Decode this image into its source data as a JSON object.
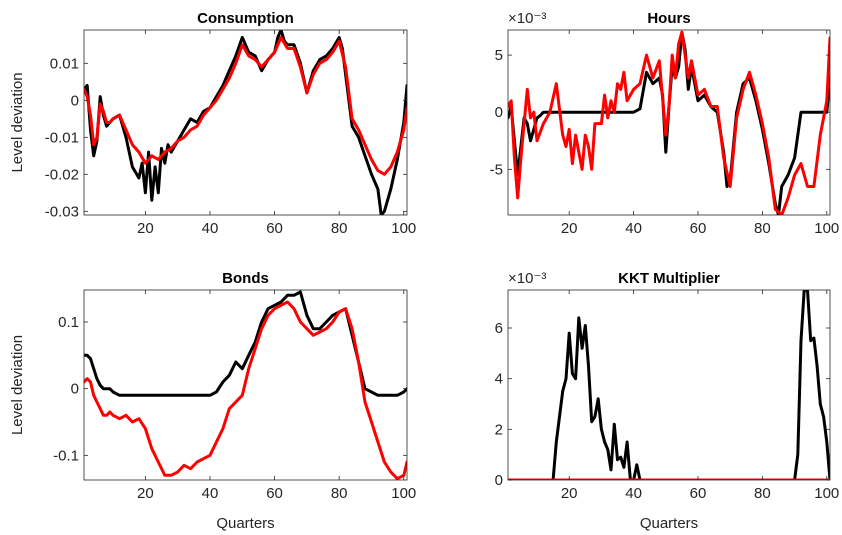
{
  "chart_data": [
    {
      "type": "line",
      "title": "Consumption",
      "xlabel": "",
      "ylabel": "Level deviation",
      "xlim": [
        1,
        101
      ],
      "ylim": [
        -0.031,
        0.019
      ],
      "xticks": [
        20,
        40,
        60,
        80,
        100
      ],
      "yticks": [
        -0.03,
        -0.02,
        -0.01,
        0,
        0.01
      ],
      "ytick_labels": [
        "-0.03",
        "-0.02",
        "-0.01",
        "0",
        "0.01"
      ],
      "exponent_label": "",
      "grid": false,
      "series": [
        {
          "color": "#000000",
          "x": [
            1,
            2,
            3,
            4,
            5,
            6,
            7,
            8,
            9,
            10,
            12,
            14,
            16,
            18,
            19,
            20,
            21,
            22,
            23,
            24,
            25,
            26,
            27,
            28,
            30,
            32,
            34,
            36,
            38,
            40,
            42,
            44,
            46,
            48,
            50,
            52,
            54,
            56,
            58,
            60,
            61,
            62,
            63,
            64,
            66,
            68,
            70,
            72,
            74,
            76,
            78,
            80,
            81,
            82,
            84,
            86,
            88,
            90,
            92,
            93,
            94,
            95,
            96,
            98,
            100,
            101
          ],
          "y": [
            0.003,
            0.004,
            -0.008,
            -0.015,
            -0.011,
            0.001,
            -0.004,
            -0.007,
            -0.006,
            -0.005,
            -0.004,
            -0.01,
            -0.018,
            -0.021,
            -0.017,
            -0.025,
            -0.014,
            -0.027,
            -0.018,
            -0.025,
            -0.013,
            -0.017,
            -0.012,
            -0.014,
            -0.011,
            -0.008,
            -0.005,
            -0.006,
            -0.003,
            -0.002,
            0.001,
            0.004,
            0.008,
            0.012,
            0.017,
            0.013,
            0.012,
            0.008,
            0.011,
            0.013,
            0.017,
            0.019,
            0.016,
            0.015,
            0.015,
            0.01,
            0.002,
            0.008,
            0.011,
            0.012,
            0.014,
            0.017,
            0.014,
            0.007,
            -0.007,
            -0.01,
            -0.015,
            -0.02,
            -0.024,
            -0.031,
            -0.03,
            -0.027,
            -0.024,
            -0.016,
            -0.006,
            0.004
          ]
        },
        {
          "color": "#ff0000",
          "x": [
            1,
            2,
            3,
            4,
            5,
            6,
            7,
            8,
            9,
            10,
            12,
            14,
            16,
            18,
            20,
            22,
            24,
            26,
            28,
            30,
            32,
            34,
            36,
            38,
            40,
            42,
            44,
            46,
            48,
            50,
            52,
            54,
            56,
            58,
            60,
            62,
            64,
            66,
            68,
            70,
            72,
            74,
            76,
            78,
            80,
            82,
            84,
            86,
            88,
            90,
            92,
            94,
            96,
            98,
            100,
            101
          ],
          "y": [
            0.003,
            0.001,
            -0.004,
            -0.012,
            -0.01,
            -0.001,
            -0.003,
            -0.006,
            -0.006,
            -0.005,
            -0.004,
            -0.008,
            -0.012,
            -0.014,
            -0.017,
            -0.015,
            -0.016,
            -0.014,
            -0.013,
            -0.011,
            -0.01,
            -0.008,
            -0.007,
            -0.004,
            -0.002,
            0.0,
            0.003,
            0.006,
            0.01,
            0.015,
            0.012,
            0.011,
            0.009,
            0.011,
            0.013,
            0.017,
            0.014,
            0.014,
            0.009,
            0.002,
            0.007,
            0.01,
            0.011,
            0.013,
            0.016,
            0.009,
            -0.005,
            -0.008,
            -0.012,
            -0.016,
            -0.019,
            -0.02,
            -0.018,
            -0.014,
            -0.008,
            -0.002
          ]
        }
      ]
    },
    {
      "type": "line",
      "title": "Hours",
      "xlabel": "",
      "ylabel": "",
      "xlim": [
        1,
        101
      ],
      "ylim": [
        -9,
        7.2
      ],
      "xticks": [
        20,
        40,
        60,
        80,
        100
      ],
      "yticks": [
        -5,
        0,
        5
      ],
      "ytick_labels": [
        "-5",
        "0",
        "5"
      ],
      "exponent_label": "×10⁻³",
      "grid": false,
      "series": [
        {
          "color": "#000000",
          "x": [
            1,
            2,
            3,
            4,
            5,
            6,
            7,
            8,
            9,
            10,
            11,
            12,
            13,
            14,
            16,
            20,
            30,
            40,
            42,
            44,
            46,
            48,
            49,
            50,
            51,
            52,
            53,
            54,
            55,
            56,
            57,
            58,
            60,
            62,
            64,
            66,
            68,
            69,
            70,
            72,
            74,
            76,
            78,
            80,
            82,
            84,
            85,
            86,
            88,
            90,
            92,
            94,
            96,
            98,
            100,
            101
          ],
          "y": [
            -0.5,
            0.5,
            -2.5,
            -5.5,
            -3.0,
            -0.5,
            -1.0,
            -2.5,
            -1.5,
            -0.5,
            -0.3,
            0,
            0,
            0,
            0,
            0,
            0,
            0,
            0.3,
            3.5,
            2.5,
            3.0,
            1.5,
            -3.5,
            0.5,
            4.0,
            3.0,
            4.0,
            7.0,
            5.5,
            2.0,
            4.0,
            1.0,
            1.5,
            0.5,
            0.0,
            -3.5,
            -6.5,
            -6.0,
            0.0,
            2.5,
            3.0,
            1.0,
            -1.5,
            -4.5,
            -8.0,
            -9.0,
            -6.5,
            -5.5,
            -4.0,
            0.0,
            0.0,
            0.0,
            0.0,
            0.0,
            3.0
          ]
        },
        {
          "color": "#ff0000",
          "x": [
            1,
            2,
            3,
            4,
            5,
            6,
            7,
            8,
            9,
            10,
            12,
            14,
            16,
            18,
            19,
            20,
            21,
            22,
            23,
            24,
            25,
            26,
            27,
            28,
            30,
            31,
            32,
            33,
            34,
            35,
            36,
            37,
            38,
            40,
            42,
            44,
            46,
            48,
            50,
            51,
            52,
            53,
            54,
            55,
            56,
            57,
            58,
            60,
            62,
            64,
            66,
            68,
            70,
            72,
            74,
            76,
            78,
            80,
            82,
            84,
            86,
            88,
            90,
            92,
            94,
            96,
            98,
            100,
            101
          ],
          "y": [
            0.5,
            1.0,
            -4.0,
            -7.5,
            -4.0,
            -1.0,
            2.0,
            -0.5,
            0.0,
            -2.5,
            -1.0,
            0.0,
            2.5,
            -2.0,
            -3.0,
            -1.5,
            -4.5,
            -2.0,
            -3.5,
            -5.0,
            -2.0,
            -3.0,
            -5.0,
            -1.0,
            -1.0,
            1.5,
            -0.5,
            1.0,
            0.0,
            2.5,
            2.0,
            3.5,
            1.0,
            2.0,
            2.5,
            5.0,
            3.0,
            4.5,
            -2.0,
            0.5,
            5.0,
            3.0,
            6.0,
            7.0,
            5.0,
            3.0,
            4.5,
            1.5,
            2.0,
            0.5,
            0.5,
            -4.0,
            -6.5,
            -0.5,
            2.0,
            3.5,
            1.5,
            -1.0,
            -4.0,
            -8.5,
            -9.0,
            -7.5,
            -5.5,
            -4.5,
            -6.5,
            -6.5,
            -2.0,
            1.0,
            6.5
          ]
        }
      ]
    },
    {
      "type": "line",
      "title": "Bonds",
      "xlabel": "Quarters",
      "ylabel": "Level deviation",
      "xlim": [
        1,
        101
      ],
      "ylim": [
        -0.137,
        0.148
      ],
      "xticks": [
        20,
        40,
        60,
        80,
        100
      ],
      "yticks": [
        -0.1,
        0,
        0.1
      ],
      "ytick_labels": [
        "-0.1",
        "0",
        "0.1"
      ],
      "exponent_label": "",
      "grid": false,
      "series": [
        {
          "color": "#000000",
          "x": [
            1,
            2,
            3,
            4,
            5,
            6,
            7,
            8,
            9,
            10,
            12,
            14,
            16,
            20,
            30,
            40,
            42,
            44,
            46,
            48,
            50,
            52,
            54,
            56,
            58,
            60,
            62,
            64,
            66,
            68,
            70,
            72,
            74,
            76,
            78,
            80,
            82,
            84,
            86,
            88,
            90,
            92,
            94,
            96,
            98,
            100,
            101
          ],
          "y": [
            0.05,
            0.05,
            0.045,
            0.03,
            0.015,
            0.005,
            0.0,
            0.0,
            0.0,
            -0.005,
            -0.01,
            -0.01,
            -0.01,
            -0.01,
            -0.01,
            -0.01,
            -0.005,
            0.01,
            0.02,
            0.04,
            0.03,
            0.05,
            0.07,
            0.1,
            0.12,
            0.125,
            0.13,
            0.14,
            0.14,
            0.145,
            0.11,
            0.09,
            0.09,
            0.1,
            0.11,
            0.115,
            0.12,
            0.08,
            0.04,
            0.0,
            -0.005,
            -0.01,
            -0.01,
            -0.01,
            -0.01,
            -0.005,
            0.0
          ]
        },
        {
          "color": "#ff0000",
          "x": [
            1,
            2,
            3,
            4,
            5,
            6,
            7,
            8,
            9,
            10,
            12,
            14,
            16,
            18,
            20,
            22,
            24,
            26,
            28,
            30,
            32,
            34,
            36,
            38,
            40,
            42,
            44,
            46,
            48,
            50,
            52,
            54,
            56,
            58,
            60,
            62,
            64,
            66,
            68,
            70,
            72,
            74,
            76,
            78,
            80,
            82,
            84,
            86,
            88,
            90,
            92,
            94,
            96,
            98,
            100,
            101
          ],
          "y": [
            0.01,
            0.015,
            0.01,
            -0.01,
            -0.02,
            -0.03,
            -0.04,
            -0.04,
            -0.035,
            -0.04,
            -0.045,
            -0.04,
            -0.05,
            -0.045,
            -0.06,
            -0.09,
            -0.11,
            -0.13,
            -0.13,
            -0.125,
            -0.115,
            -0.12,
            -0.11,
            -0.105,
            -0.1,
            -0.08,
            -0.06,
            -0.03,
            -0.02,
            -0.01,
            0.03,
            0.06,
            0.09,
            0.11,
            0.12,
            0.125,
            0.13,
            0.12,
            0.1,
            0.09,
            0.08,
            0.085,
            0.09,
            0.1,
            0.115,
            0.12,
            0.09,
            0.04,
            -0.02,
            -0.05,
            -0.08,
            -0.11,
            -0.125,
            -0.135,
            -0.13,
            -0.11
          ]
        }
      ]
    },
    {
      "type": "line",
      "title": "KKT Multiplier",
      "xlabel": "Quarters",
      "ylabel": "",
      "xlim": [
        1,
        101
      ],
      "ylim": [
        0,
        7.5
      ],
      "xticks": [
        20,
        40,
        60,
        80,
        100
      ],
      "yticks": [
        0,
        2,
        4,
        6
      ],
      "ytick_labels": [
        "0",
        "2",
        "4",
        "6"
      ],
      "exponent_label": "×10⁻³",
      "grid": false,
      "series": [
        {
          "color": "#000000",
          "x": [
            1,
            14,
            15,
            16,
            18,
            19,
            20,
            21,
            22,
            23,
            24,
            25,
            26,
            27,
            28,
            29,
            30,
            31,
            32,
            33,
            34,
            35,
            36,
            37,
            38,
            39,
            40,
            41,
            42,
            43,
            60,
            80,
            90,
            91,
            92,
            93,
            94,
            95,
            96,
            97,
            98,
            99,
            100,
            101
          ],
          "y": [
            0,
            0,
            0.0,
            1.5,
            3.5,
            4.0,
            5.8,
            4.2,
            4.0,
            6.4,
            5.2,
            6.1,
            4.5,
            2.3,
            2.5,
            3.2,
            2.0,
            1.5,
            1.2,
            0.4,
            2.2,
            0.8,
            0.9,
            0.5,
            1.5,
            0.0,
            0.0,
            0.6,
            0.0,
            0,
            0,
            0,
            0,
            1.0,
            5.5,
            7.5,
            7.5,
            5.5,
            5.6,
            4.5,
            3.0,
            2.5,
            1.5,
            0.0
          ]
        },
        {
          "color": "#ff0000",
          "x": [
            1,
            101
          ],
          "y": [
            0,
            0
          ]
        }
      ]
    }
  ]
}
